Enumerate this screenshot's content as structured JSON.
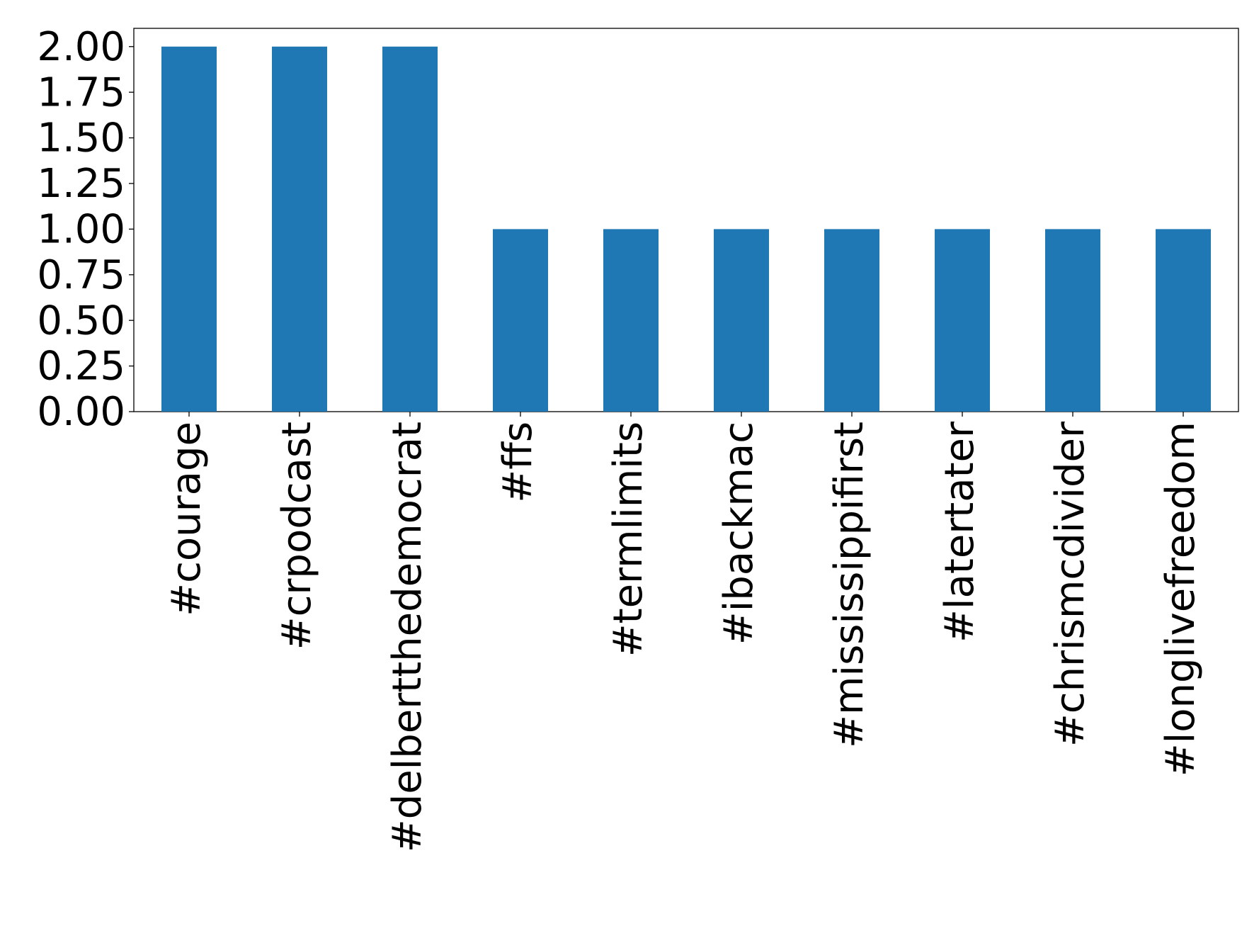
{
  "chart_data": {
    "type": "bar",
    "categories": [
      "#courage",
      "#crpodcast",
      "#delbertthedemocrat",
      "#ffs",
      "#termlimits",
      "#ibackmac",
      "#mississippifirst",
      "#latertater",
      "#chrismcdivider",
      "#longlivefreedom"
    ],
    "values": [
      2,
      2,
      2,
      1,
      1,
      1,
      1,
      1,
      1,
      1
    ],
    "color": "#1f77b4",
    "ylim": [
      0,
      2.1
    ],
    "yticks": [
      {
        "value": 0,
        "label": "0.00"
      },
      {
        "value": 0.25,
        "label": "0.25"
      },
      {
        "value": 0.5,
        "label": "0.50"
      },
      {
        "value": 0.75,
        "label": "0.75"
      },
      {
        "value": 1,
        "label": "1.00"
      },
      {
        "value": 1.25,
        "label": "1.25"
      },
      {
        "value": 1.5,
        "label": "1.50"
      },
      {
        "value": 1.75,
        "label": "1.75"
      },
      {
        "value": 2,
        "label": "2.00"
      }
    ],
    "grid": false
  }
}
